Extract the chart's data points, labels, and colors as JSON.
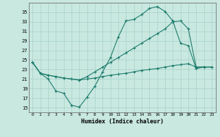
{
  "xlabel": "Humidex (Indice chaleur)",
  "background_color": "#c8e8e0",
  "grid_color": "#a8d0c8",
  "line_color": "#1a7a6a",
  "xlim": [
    -0.5,
    23.5
  ],
  "ylim": [
    14,
    37
  ],
  "yticks": [
    15,
    17,
    19,
    21,
    23,
    25,
    27,
    29,
    31,
    33,
    35
  ],
  "xticks": [
    0,
    1,
    2,
    3,
    4,
    5,
    6,
    7,
    8,
    9,
    10,
    11,
    12,
    13,
    14,
    15,
    16,
    17,
    18,
    19,
    20,
    21,
    22,
    23
  ],
  "curve1_x": [
    0,
    1,
    2,
    3,
    4,
    5,
    6,
    7,
    8,
    9,
    10,
    11,
    12,
    13,
    14,
    15,
    16,
    17,
    18,
    19,
    20,
    21,
    22
  ],
  "curve1_y": [
    24.5,
    22.2,
    21.0,
    18.5,
    18.0,
    15.5,
    15.1,
    17.2,
    19.5,
    22.5,
    25.5,
    29.8,
    33.2,
    33.5,
    34.5,
    35.8,
    36.2,
    35.2,
    33.2,
    28.5,
    28.0,
    23.2,
    23.5
  ],
  "curve2_x": [
    0,
    1,
    2,
    3,
    4,
    5,
    6,
    7,
    8,
    9,
    10,
    11,
    12,
    13,
    14,
    15,
    16,
    17,
    18,
    19,
    20,
    21,
    22,
    23
  ],
  "curve2_y": [
    24.5,
    22.2,
    21.8,
    21.5,
    21.2,
    21.0,
    20.8,
    21.5,
    22.5,
    23.5,
    24.5,
    25.5,
    26.5,
    27.5,
    28.5,
    29.5,
    30.5,
    31.5,
    33.0,
    33.2,
    31.5,
    23.5,
    23.5,
    23.5
  ],
  "curve3_x": [
    0,
    1,
    2,
    3,
    4,
    5,
    6,
    7,
    8,
    9,
    10,
    11,
    12,
    13,
    14,
    15,
    16,
    17,
    18,
    19,
    20,
    21,
    22,
    23
  ],
  "curve3_y": [
    24.5,
    22.2,
    21.8,
    21.5,
    21.2,
    21.0,
    20.8,
    21.0,
    21.2,
    21.5,
    21.8,
    22.0,
    22.2,
    22.5,
    22.8,
    23.0,
    23.2,
    23.5,
    23.8,
    24.0,
    24.2,
    23.5,
    23.5,
    23.5
  ]
}
